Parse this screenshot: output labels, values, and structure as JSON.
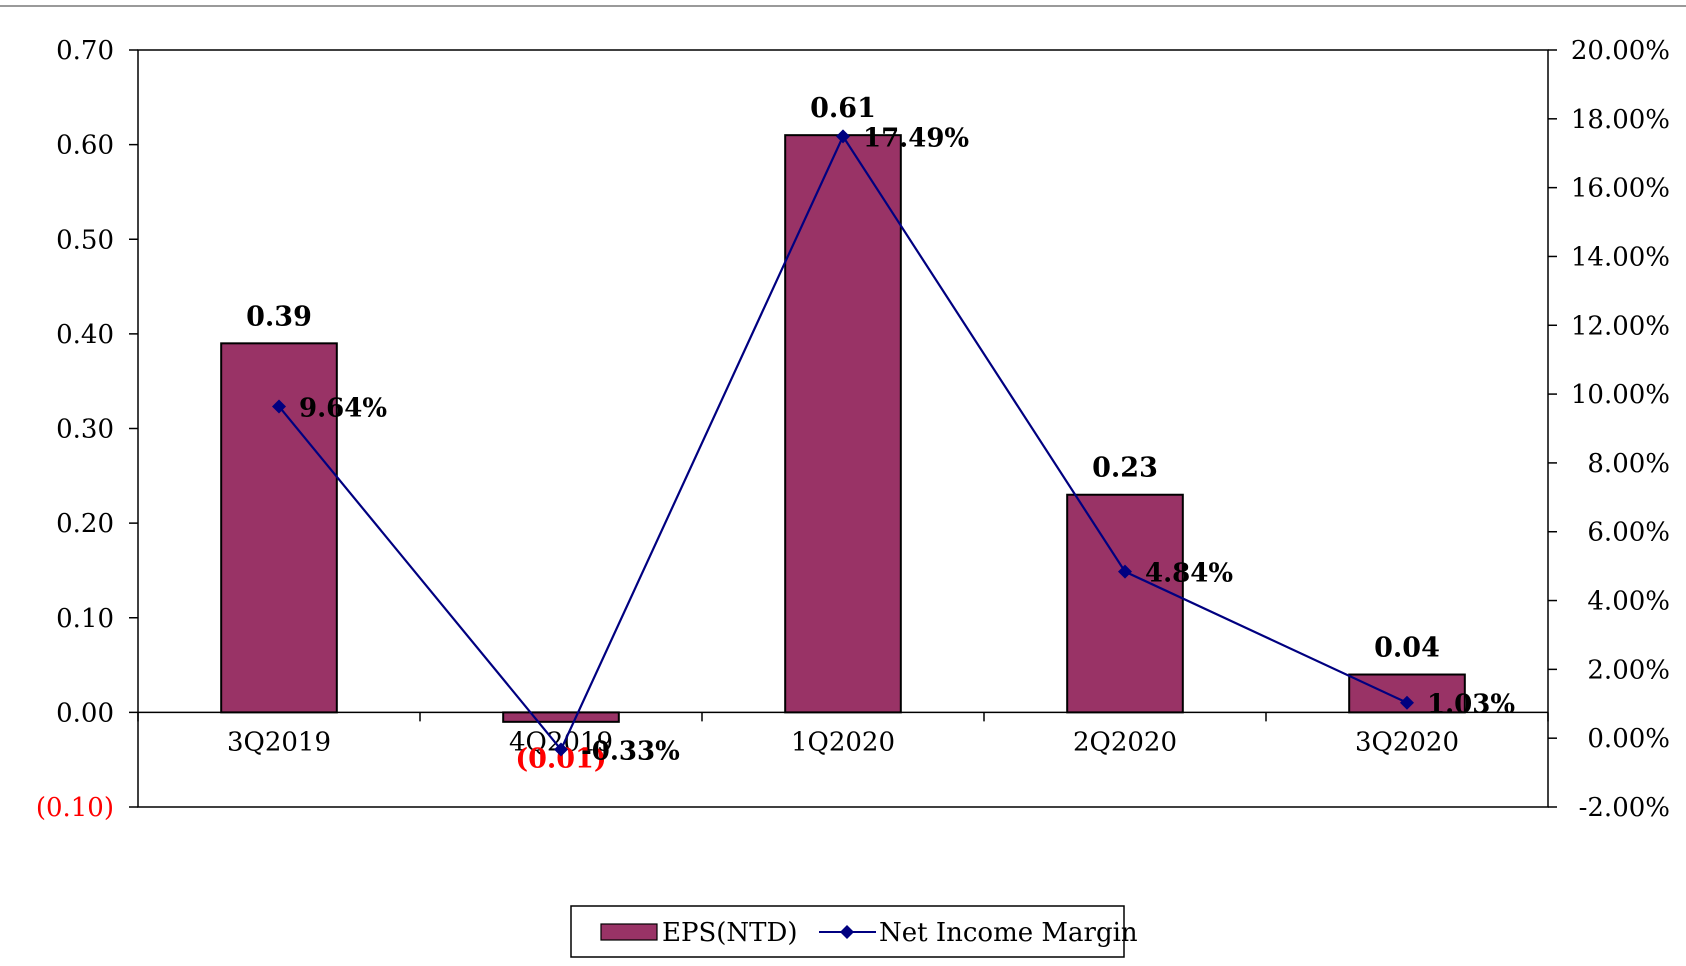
{
  "chart_data": {
    "type": "bar",
    "categories": [
      "3Q2019",
      "4Q2019",
      "1Q2020",
      "2Q2020",
      "3Q2020"
    ],
    "series": [
      {
        "name": "EPS(NTD)",
        "type": "bar",
        "axis": "left",
        "values": [
          0.39,
          -0.01,
          0.61,
          0.23,
          0.04
        ],
        "labels": [
          "0.39",
          "(0.01)",
          "0.61",
          "0.23",
          "0.04"
        ],
        "color": "#993366"
      },
      {
        "name": "Net Income Margin",
        "type": "line",
        "axis": "right",
        "values": [
          9.64,
          -0.33,
          17.49,
          4.84,
          1.03
        ],
        "labels": [
          "9.64%",
          "-0.33%",
          "17.49%",
          "4.84%",
          "1.03%"
        ],
        "color": "#000080"
      }
    ],
    "y_left": {
      "ylim": [
        -0.1,
        0.7
      ],
      "ticks": [
        -0.1,
        0.0,
        0.1,
        0.2,
        0.3,
        0.4,
        0.5,
        0.6,
        0.7
      ],
      "tick_labels": [
        "(0.10)",
        "0.00",
        "0.10",
        "0.20",
        "0.30",
        "0.40",
        "0.50",
        "0.60",
        "0.70"
      ]
    },
    "y_right": {
      "ylim": [
        -2,
        20
      ],
      "ticks": [
        -2,
        0,
        2,
        4,
        6,
        8,
        10,
        12,
        14,
        16,
        18,
        20
      ],
      "tick_labels": [
        "-2.00%",
        "0.00%",
        "2.00%",
        "4.00%",
        "6.00%",
        "8.00%",
        "10.00%",
        "12.00%",
        "14.00%",
        "16.00%",
        "18.00%",
        "20.00%"
      ]
    },
    "grid": false,
    "legend": "bottom-center",
    "negative_color": "#ff0000"
  }
}
